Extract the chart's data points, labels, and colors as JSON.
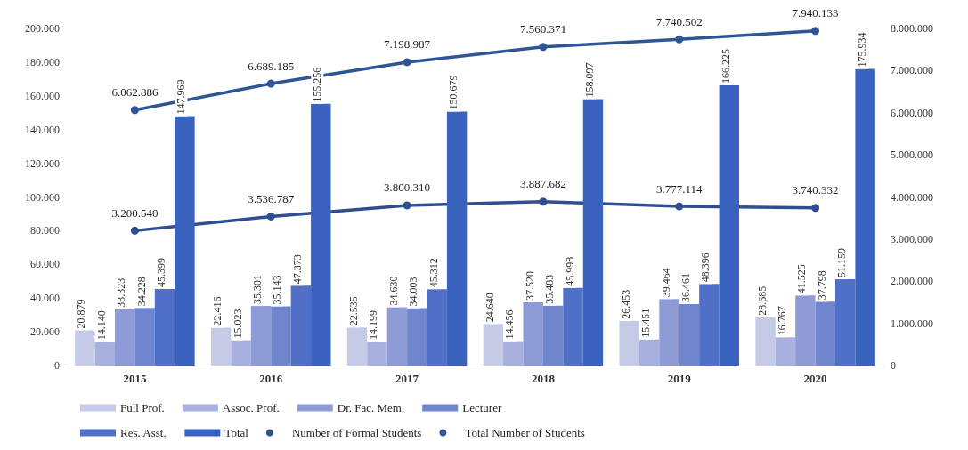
{
  "chart_data": {
    "type": "bar",
    "categories": [
      "2015",
      "2016",
      "2017",
      "2018",
      "2019",
      "2020"
    ],
    "series": [
      {
        "name": "Full Prof.",
        "color": "#c5cbe6",
        "values": [
          20879,
          22416,
          22535,
          24640,
          26453,
          28685
        ],
        "value_labels": [
          "20.879",
          "22.416",
          "22.535",
          "24.640",
          "26.453",
          "28.685"
        ]
      },
      {
        "name": "Assoc. Prof.",
        "color": "#a7b0de",
        "values": [
          14140,
          15023,
          14199,
          14456,
          15451,
          16767
        ],
        "value_labels": [
          "14.140",
          "15.023",
          "14.199",
          "14.456",
          "15.451",
          "16.767"
        ]
      },
      {
        "name": "Dr. Fac. Mem.",
        "color": "#8e9bd6",
        "values": [
          33323,
          35301,
          34630,
          37520,
          39464,
          41525
        ],
        "value_labels": [
          "33.323",
          "35.301",
          "34.630",
          "37.520",
          "39.464",
          "41.525"
        ]
      },
      {
        "name": "Lecturer",
        "color": "#6f86cf",
        "values": [
          34228,
          35143,
          34003,
          35483,
          36461,
          37798
        ],
        "value_labels": [
          "34.228",
          "35.143",
          "34.003",
          "35.483",
          "36.461",
          "37.798"
        ]
      },
      {
        "name": "Res. Asst.",
        "color": "#4f70c6",
        "values": [
          45399,
          47373,
          45312,
          45998,
          48396,
          51159
        ],
        "value_labels": [
          "45.399",
          "47.373",
          "45.312",
          "45.998",
          "48.396",
          "51.159"
        ]
      },
      {
        "name": "Total",
        "color": "#3a62bf",
        "values": [
          147969,
          155256,
          150679,
          158097,
          166225,
          175934
        ],
        "value_labels": [
          "147.969",
          "155.256",
          "150.679",
          "158.097",
          "166.225",
          "175.934"
        ]
      },
      {
        "name": "Number of Formal Students",
        "type": "line",
        "axis": "y2",
        "color": "#2e4e8f",
        "values": [
          3200540,
          3536787,
          3800310,
          3887682,
          3777114,
          3740332
        ],
        "value_labels": [
          "3.200.540",
          "3.536.787",
          "3.800.310",
          "3.887.682",
          "3.777.114",
          "3.740.332"
        ]
      },
      {
        "name": "Total Number of Students",
        "type": "line",
        "axis": "y2",
        "color": "#2f5597",
        "values": [
          6062886,
          6689185,
          7198987,
          7560371,
          7740502,
          7940133
        ],
        "value_labels": [
          "6.062.886",
          "6.689.185",
          "7.198.987",
          "7.560.371",
          "7.740.502",
          "7.940.133"
        ]
      }
    ],
    "ylim": [
      0,
      200000
    ],
    "yticks": [
      0,
      {
        "value": 20000,
        "label": "20.000"
      },
      {
        "value": 40000,
        "label": "40.000"
      },
      {
        "value": 60000,
        "label": "60.000"
      },
      {
        "value": 80000,
        "label": "80.000"
      },
      {
        "value": 100000,
        "label": "100.000"
      },
      {
        "value": 120000,
        "label": "120.000"
      },
      {
        "value": 140000,
        "label": "140.000"
      },
      {
        "value": 160000,
        "label": "160.000"
      },
      {
        "value": 180000,
        "label": "180.000"
      },
      {
        "value": 200000,
        "label": "200.000"
      }
    ],
    "y2lim": [
      0,
      8000000
    ],
    "y2ticks": [
      0,
      {
        "value": 1000000,
        "label": "1.000.000"
      },
      {
        "value": 2000000,
        "label": "2.000.000"
      },
      {
        "value": 3000000,
        "label": "3.000.000"
      },
      {
        "value": 4000000,
        "label": "4.000.000"
      },
      {
        "value": 5000000,
        "label": "5.000.000"
      },
      {
        "value": 6000000,
        "label": "6.000.000"
      },
      {
        "value": 7000000,
        "label": "7.000.000"
      },
      {
        "value": 8000000,
        "label": "8.000.000"
      }
    ],
    "grid": false,
    "legend": "bottom",
    "marker": "circle",
    "line_style": "solid"
  }
}
